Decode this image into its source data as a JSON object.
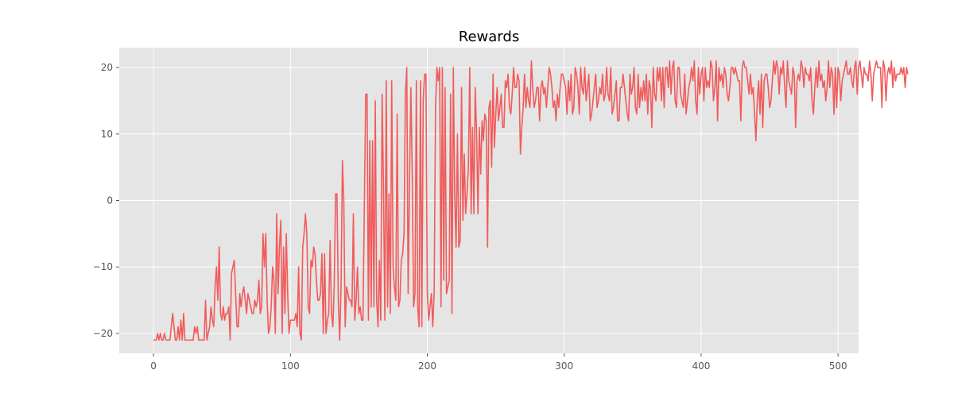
{
  "chart_data": {
    "type": "line",
    "title": "Rewards",
    "xlabel": "",
    "ylabel": "",
    "xlim": [
      -25,
      515
    ],
    "ylim": [
      -23,
      23
    ],
    "xticks": [
      0,
      100,
      200,
      300,
      400,
      500
    ],
    "yticks": [
      -20,
      -10,
      0,
      10,
      20
    ],
    "xtick_labels": [
      "0",
      "100",
      "200",
      "300",
      "400",
      "500"
    ],
    "ytick_labels": [
      "−20",
      "−10",
      "0",
      "10",
      "20"
    ],
    "grid": true,
    "background": "#e5e5e5",
    "line_color": "#f15b5b",
    "series": [
      {
        "values": [
          -21,
          -21,
          -21,
          -20,
          -21,
          -20,
          -21,
          -21,
          -20,
          -21,
          -21,
          -21,
          -21,
          -19,
          -17,
          -19,
          -21,
          -21,
          -19,
          -21,
          -18,
          -21,
          -17,
          -21,
          -21,
          -21,
          -21,
          -21,
          -21,
          -21,
          -19,
          -20,
          -19,
          -21,
          -21,
          -21,
          -21,
          -21,
          -15,
          -21,
          -20,
          -19,
          -16,
          -18,
          -19,
          -13,
          -10,
          -15,
          -7,
          -17,
          -18,
          -16,
          -18,
          -17,
          -17,
          -16,
          -21,
          -11,
          -10,
          -9,
          -14,
          -19,
          -19,
          -14,
          -16,
          -14,
          -13,
          -15,
          -17,
          -14,
          -15,
          -16,
          -17,
          -17,
          -15,
          -16,
          -15,
          -12,
          -17,
          -16,
          -5,
          -10,
          -5,
          -15,
          -20,
          -19,
          -16,
          -10,
          -12,
          -20,
          -2,
          -14,
          -7,
          -3,
          -20,
          -7,
          -17,
          -5,
          -14,
          -20,
          -18,
          -18,
          -18,
          -18,
          -17,
          -19,
          -10,
          -20,
          -21,
          -7,
          -5,
          -2,
          -5,
          -16,
          -17,
          -9,
          -10,
          -7,
          -8,
          -12,
          -15,
          -15,
          -14,
          -8,
          -20,
          -8,
          -20,
          -18,
          -17,
          -6,
          -17,
          -19,
          -13,
          1,
          1,
          -15,
          -21,
          -13,
          6,
          0,
          -19,
          -13,
          -14,
          -15,
          -15,
          -16,
          -2,
          -18,
          -15,
          -10,
          -17,
          -16,
          -18,
          -18,
          -1,
          16,
          16,
          -18,
          9,
          -16,
          9,
          -16,
          15,
          -15,
          -19,
          -9,
          -18,
          16,
          2,
          -18,
          18,
          -16,
          1,
          -17,
          18,
          -10,
          -13,
          -15,
          13,
          -16,
          -15,
          -9,
          -8,
          -5,
          16,
          20,
          -14,
          3,
          17,
          4,
          -16,
          -14,
          18,
          -16,
          -19,
          18,
          -19,
          15,
          19,
          19,
          -14,
          -18,
          -16,
          -14,
          -19,
          -14,
          14,
          20,
          18,
          20,
          -16,
          20,
          -12,
          17,
          -14,
          -13,
          -12,
          16,
          -17,
          20,
          1,
          -7,
          10,
          -7,
          -6,
          17,
          -3,
          7,
          -2,
          1,
          5,
          20,
          -2,
          11,
          -2,
          17,
          10,
          -2,
          11,
          4,
          12,
          9,
          13,
          12,
          -7,
          14,
          15,
          5,
          19,
          8,
          13,
          17,
          12,
          14,
          16,
          11,
          11,
          18,
          17,
          19,
          14,
          13,
          16,
          20,
          17,
          17,
          19,
          18,
          7,
          11,
          14,
          19,
          14,
          17,
          15,
          14,
          21,
          17,
          14,
          15,
          17,
          17,
          12,
          17,
          18,
          16,
          17,
          14,
          17,
          20,
          19,
          17,
          14,
          15,
          12,
          16,
          14,
          17,
          19,
          19,
          18,
          17,
          13,
          18,
          15,
          19,
          13,
          14,
          20,
          19,
          17,
          13,
          20,
          17,
          16,
          20,
          15,
          17,
          19,
          12,
          13,
          15,
          17,
          19,
          14,
          15,
          17,
          16,
          19,
          15,
          16,
          20,
          16,
          15,
          20,
          13,
          14,
          16,
          18,
          12,
          12,
          17,
          17,
          19,
          17,
          15,
          13,
          12,
          19,
          16,
          17,
          20,
          14,
          13,
          19,
          14,
          17,
          15,
          18,
          15,
          19,
          13,
          18,
          17,
          11,
          20,
          16,
          15,
          20,
          18,
          20,
          15,
          20,
          14,
          20,
          20,
          17,
          21,
          16,
          20,
          21,
          15,
          14,
          20,
          20,
          16,
          15,
          14,
          19,
          13,
          15,
          17,
          18,
          20,
          18,
          21,
          15,
          13,
          20,
          16,
          19,
          20,
          15,
          20,
          17,
          18,
          17,
          21,
          20,
          15,
          17,
          21,
          12,
          20,
          18,
          19,
          17,
          20,
          19,
          16,
          15,
          17,
          20,
          20,
          19,
          20,
          19,
          18,
          18,
          12,
          20,
          21,
          20,
          20,
          18,
          16,
          19,
          16,
          17,
          13,
          9,
          15,
          18,
          13,
          19,
          11,
          18,
          19,
          19,
          17,
          14,
          15,
          18,
          21,
          19,
          21,
          20,
          16,
          20,
          19,
          21,
          17,
          14,
          21,
          18,
          17,
          16,
          20,
          19,
          11,
          18,
          19,
          18,
          21,
          20,
          17,
          20,
          19,
          19,
          18,
          20,
          15,
          13,
          17,
          20,
          17,
          21,
          18,
          19,
          17,
          18,
          15,
          17,
          21,
          17,
          20,
          19,
          13,
          20,
          14,
          20,
          19,
          15,
          18,
          19,
          20,
          21,
          19,
          19,
          20,
          18,
          17,
          20,
          21,
          16,
          20,
          21,
          19,
          17,
          20,
          19,
          19,
          18,
          21,
          19,
          15,
          19,
          20,
          21,
          20,
          20,
          20,
          14,
          21,
          20,
          15,
          19,
          20,
          19,
          21,
          17,
          20,
          18,
          19,
          19,
          19,
          20,
          19,
          20,
          17,
          20,
          19
        ]
      }
    ]
  }
}
